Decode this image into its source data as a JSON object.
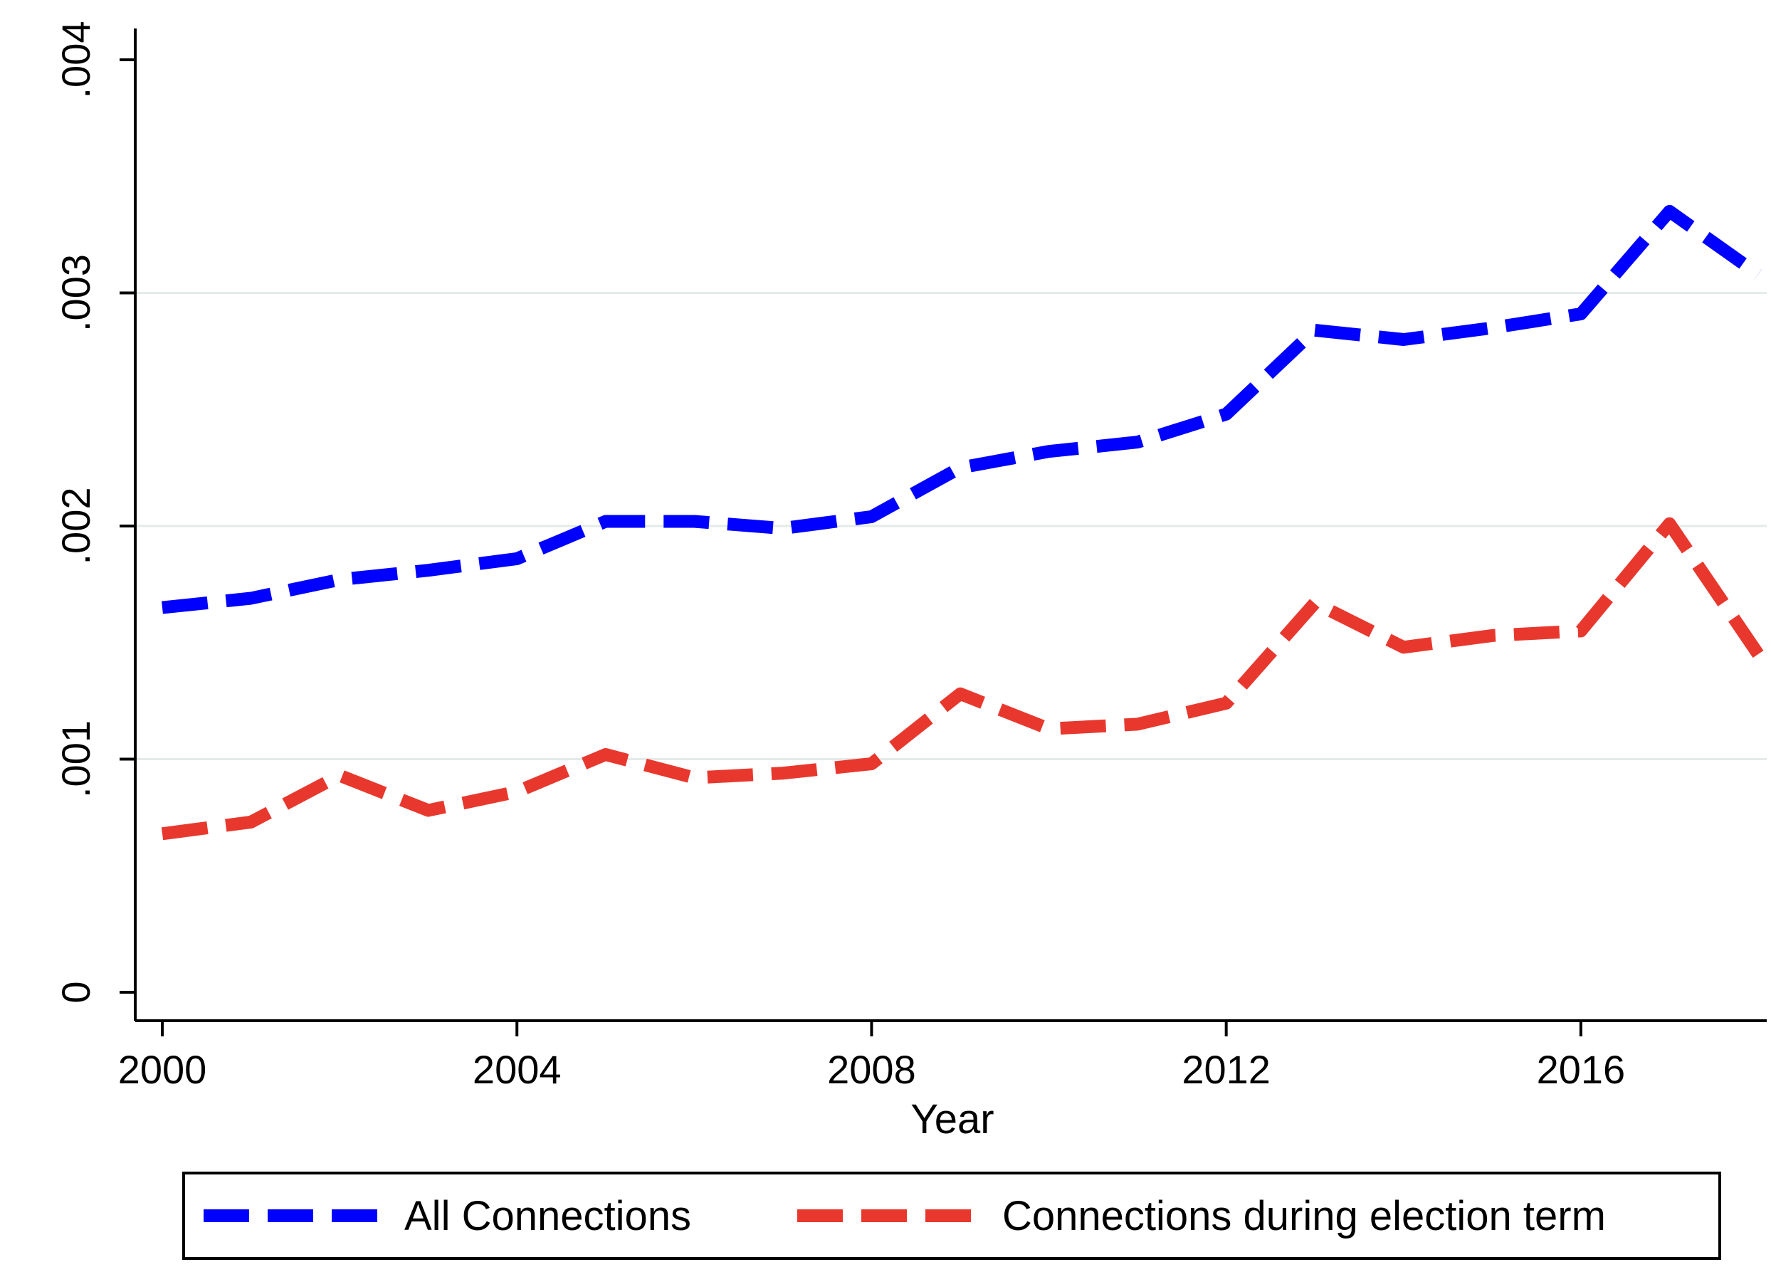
{
  "chart_data": {
    "type": "line",
    "title": "",
    "xlabel": "Year",
    "ylabel": "",
    "x": [
      2000,
      2001,
      2002,
      2003,
      2004,
      2005,
      2006,
      2007,
      2008,
      2009,
      2010,
      2011,
      2012,
      2013,
      2014,
      2015,
      2016,
      2017,
      2018
    ],
    "series": [
      {
        "name": "All Connections",
        "color": "#0000ff",
        "line_style": "dashed",
        "values": [
          0.00165,
          0.00169,
          0.00177,
          0.00181,
          0.00186,
          0.00202,
          0.00202,
          0.00199,
          0.00204,
          0.00225,
          0.00232,
          0.00236,
          0.00248,
          0.00284,
          0.0028,
          0.00285,
          0.00291,
          0.00335,
          0.00308
        ]
      },
      {
        "name": "Connections during election term",
        "color": "#e8382e",
        "line_style": "dashed",
        "values": [
          0.00068,
          0.00073,
          0.00093,
          0.00078,
          0.00086,
          0.00102,
          0.00092,
          0.00094,
          0.00098,
          0.00128,
          0.00113,
          0.00115,
          0.00124,
          0.00167,
          0.00148,
          0.00153,
          0.00155,
          0.00201,
          0.00145
        ]
      }
    ],
    "xlim": [
      2000,
      2018
    ],
    "ylim": [
      0,
      0.004
    ],
    "x_ticks": [
      "2000",
      "2004",
      "2008",
      "2012",
      "2016"
    ],
    "x_tick_values": [
      2000,
      2004,
      2008,
      2012,
      2016
    ],
    "y_ticks": [
      "0",
      ".001",
      ".002",
      ".003",
      ".004"
    ],
    "y_tick_values": [
      0,
      0.001,
      0.002,
      0.003,
      0.004
    ],
    "grid": "horizontal",
    "legend_position": "bottom"
  }
}
